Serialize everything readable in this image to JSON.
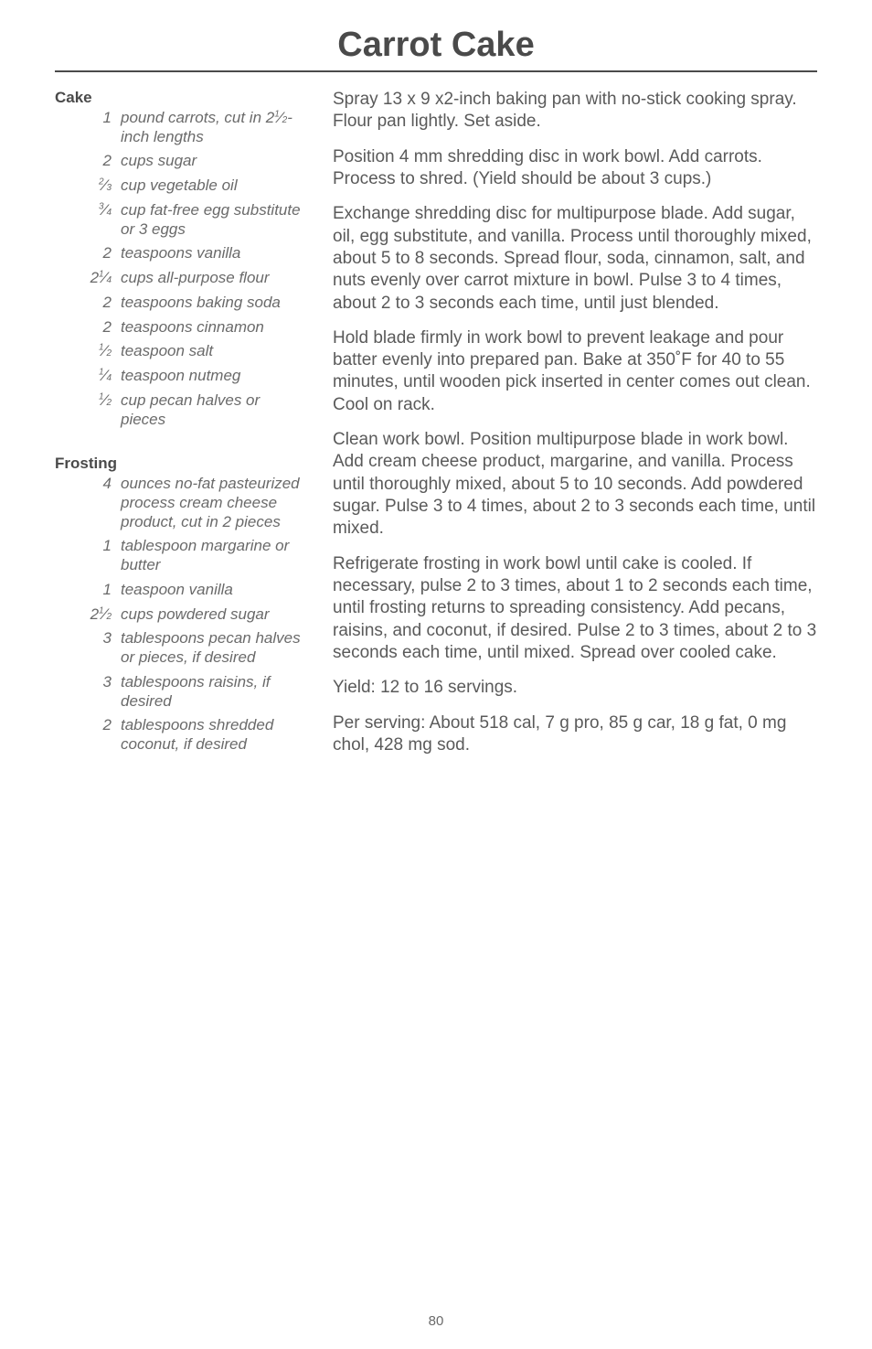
{
  "title": "Carrot Cake",
  "page_number": "80",
  "sections": {
    "cake": {
      "heading": "Cake",
      "ingredients": [
        {
          "qty": "1",
          "item": "pound carrots, cut in 2½-inch lengths",
          "qty_html": "1",
          "item_html": "pound carrots, cut in 2<span class='frac-sup'>1</span>⁄<span class='frac-sub'>2</span>-inch lengths"
        },
        {
          "qty": "2",
          "item": "cups sugar"
        },
        {
          "qty": "⅔",
          "item": "cup vegetable oil",
          "qty_html": "<span class='frac-sup'>2</span>⁄<span class='frac-sub'>3</span>"
        },
        {
          "qty": "¾",
          "item": "cup fat-free egg substitute or 3 eggs",
          "qty_html": "<span class='frac-sup'>3</span>⁄<span class='frac-sub'>4</span>"
        },
        {
          "qty": "2",
          "item": "teaspoons vanilla"
        },
        {
          "qty": "2¼",
          "item": "cups all-purpose flour",
          "qty_html": "2<span class='frac-sup'>1</span>⁄<span class='frac-sub'>4</span>"
        },
        {
          "qty": "2",
          "item": "teaspoons baking soda"
        },
        {
          "qty": "2",
          "item": "teaspoons cinnamon"
        },
        {
          "qty": "½",
          "item": "teaspoon salt",
          "qty_html": "<span class='frac-sup'>1</span>⁄<span class='frac-sub'>2</span>"
        },
        {
          "qty": "¼",
          "item": "teaspoon nutmeg",
          "qty_html": "<span class='frac-sup'>1</span>⁄<span class='frac-sub'>4</span>"
        },
        {
          "qty": "½",
          "item": "cup pecan halves or pieces",
          "qty_html": "<span class='frac-sup'>1</span>⁄<span class='frac-sub'>2</span>"
        }
      ]
    },
    "frosting": {
      "heading": "Frosting",
      "ingredients": [
        {
          "qty": "4",
          "item": "ounces no-fat pasteurized process cream cheese product, cut in 2 pieces"
        },
        {
          "qty": "1",
          "item": "tablespoon margarine or butter"
        },
        {
          "qty": "1",
          "item": "teaspoon vanilla"
        },
        {
          "qty": "2½",
          "item": "cups powdered sugar",
          "qty_html": "2<span class='frac-sup'>1</span>⁄<span class='frac-sub'>2</span>"
        },
        {
          "qty": "3",
          "item": "tablespoons pecan halves or pieces, if desired"
        },
        {
          "qty": "3",
          "item": "tablespoons raisins, if desired"
        },
        {
          "qty": "2",
          "item": "tablespoons shredded coconut, if desired"
        }
      ]
    }
  },
  "instructions": [
    "Spray 13 x 9 x2-inch baking pan with no-stick cooking spray. Flour pan lightly. Set aside.",
    "Position 4 mm shredding disc in work bowl. Add carrots. Process to shred. (Yield should be about 3 cups.)",
    "Exchange shredding disc for multipurpose blade. Add sugar, oil, egg substitute, and vanilla. Process until thoroughly mixed, about 5 to 8 seconds. Spread flour, soda, cinnamon, salt, and nuts evenly over carrot mixture in bowl. Pulse 3 to 4 times, about 2 to 3 seconds each time, until just blended.",
    "Hold blade firmly in work bowl to prevent leakage and pour batter evenly into prepared pan. Bake at 350˚F for 40 to 55 minutes, until wooden pick inserted in center comes out clean. Cool on rack.",
    "Clean work bowl. Position multipurpose blade in work bowl. Add cream cheese product, margarine, and vanilla. Process until thoroughly mixed, about 5 to 10 seconds. Add powdered sugar. Pulse 3 to 4 times, about 2 to 3 seconds each time, until mixed.",
    "Refrigerate frosting in work bowl until cake is cooled. If necessary, pulse 2 to 3 times, about 1 to 2 seconds each time, until frosting returns to spreading consistency. Add pecans, raisins, and coconut, if desired. Pulse 2 to 3 times, about 2 to 3 seconds each time, until mixed. Spread over cooled cake.",
    "Yield: 12 to 16 servings.",
    "Per serving: About 518 cal, 7 g pro, 85 g car, 18 g fat, 0 mg chol, 428 mg sod."
  ]
}
